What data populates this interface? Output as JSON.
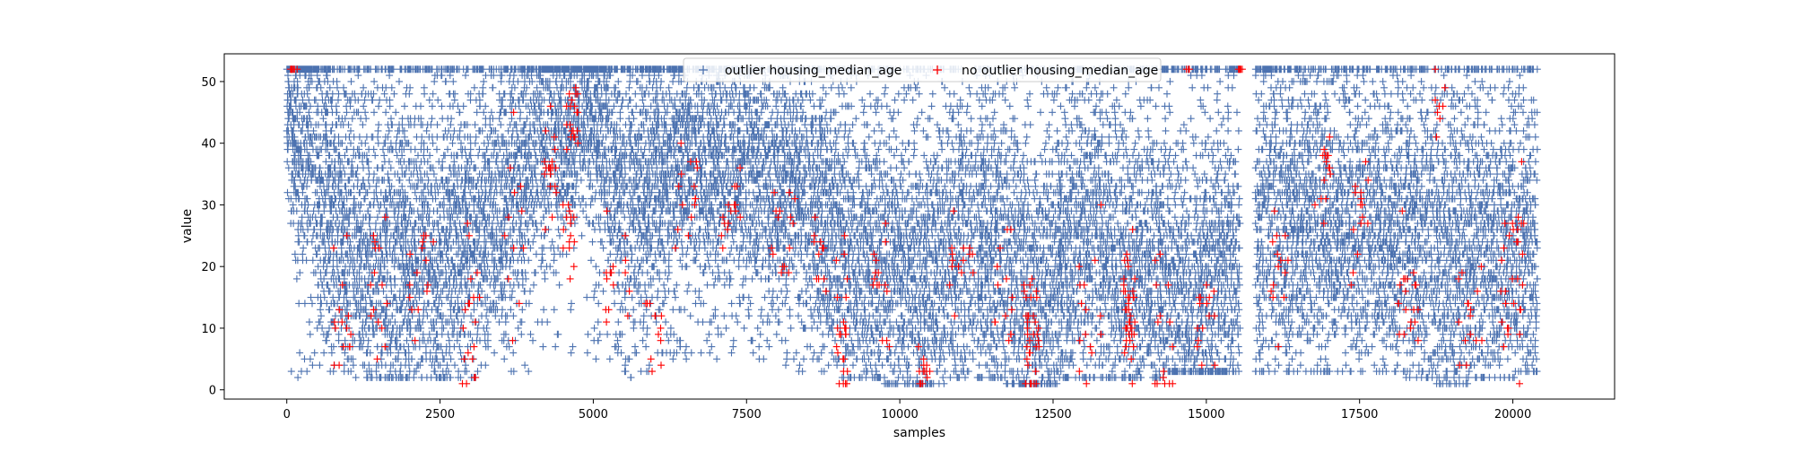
{
  "chart_data": {
    "type": "scatter",
    "title": "",
    "xlabel": "samples",
    "ylabel": "value",
    "xlim": [
      -1020,
      21660
    ],
    "ylim": [
      -1.5,
      54.5
    ],
    "x_ticks": [
      0,
      2500,
      5000,
      7500,
      10000,
      12500,
      15000,
      17500,
      20000
    ],
    "y_ticks": [
      0,
      10,
      20,
      30,
      40,
      50
    ],
    "grid": false,
    "legend_position": "top-center",
    "marker": "+",
    "series": [
      {
        "name": "outlier housing_median_age",
        "color": "#4c72b0",
        "profile": [
          {
            "x": 0,
            "y_min": 2,
            "y_max": 52,
            "center": 45,
            "spread": 7
          },
          {
            "x": 600,
            "y_min": 3,
            "y_max": 52,
            "center": 30,
            "spread": 12
          },
          {
            "x": 1500,
            "y_min": 2,
            "y_max": 52,
            "center": 22,
            "spread": 11
          },
          {
            "x": 2500,
            "y_min": 2,
            "y_max": 52,
            "center": 22,
            "spread": 11
          },
          {
            "x": 3500,
            "y_min": 2,
            "y_max": 52,
            "center": 30,
            "spread": 10
          },
          {
            "x": 4300,
            "y_min": 3,
            "y_max": 52,
            "center": 40,
            "spread": 8
          },
          {
            "x": 5000,
            "y_min": 5,
            "y_max": 52,
            "center": 44,
            "spread": 7
          },
          {
            "x": 5600,
            "y_min": 2,
            "y_max": 52,
            "center": 30,
            "spread": 12
          },
          {
            "x": 6500,
            "y_min": 5,
            "y_max": 52,
            "center": 38,
            "spread": 8
          },
          {
            "x": 7500,
            "y_min": 5,
            "y_max": 52,
            "center": 36,
            "spread": 9
          },
          {
            "x": 8500,
            "y_min": 3,
            "y_max": 52,
            "center": 32,
            "spread": 10
          },
          {
            "x": 9200,
            "y_min": 2,
            "y_max": 52,
            "center": 22,
            "spread": 11
          },
          {
            "x": 10300,
            "y_min": 1,
            "y_max": 52,
            "center": 18,
            "spread": 11
          },
          {
            "x": 11200,
            "y_min": 2,
            "y_max": 52,
            "center": 25,
            "spread": 11
          },
          {
            "x": 12200,
            "y_min": 1,
            "y_max": 52,
            "center": 15,
            "spread": 11
          },
          {
            "x": 13000,
            "y_min": 2,
            "y_max": 52,
            "center": 26,
            "spread": 12
          },
          {
            "x": 13800,
            "y_min": 2,
            "y_max": 52,
            "center": 20,
            "spread": 11
          },
          {
            "x": 14800,
            "y_min": 3,
            "y_max": 52,
            "center": 17,
            "spread": 10
          },
          {
            "x": 15400,
            "y_min": 3,
            "y_max": 52,
            "center": 20,
            "spread": 11
          },
          {
            "x": 16000,
            "y_min": 3,
            "y_max": 52,
            "center": 28,
            "spread": 12
          },
          {
            "x": 17000,
            "y_min": 3,
            "y_max": 52,
            "center": 27,
            "spread": 11
          },
          {
            "x": 18000,
            "y_min": 3,
            "y_max": 52,
            "center": 25,
            "spread": 11
          },
          {
            "x": 19000,
            "y_min": 1,
            "y_max": 52,
            "center": 22,
            "spread": 12
          },
          {
            "x": 20400,
            "y_min": 3,
            "y_max": 52,
            "center": 22,
            "spread": 10
          }
        ],
        "gaps": [
          [
            15550,
            15800
          ]
        ],
        "clusters_at_max": [
          [
            0,
            500
          ],
          [
            4050,
            5000
          ],
          [
            15400,
            16100
          ]
        ],
        "n_points": 19000
      },
      {
        "name": "no outlier housing_median_age",
        "color": "#ff0000",
        "hotspots": [
          {
            "x": 100,
            "y": 52,
            "w": 150,
            "sd": 0.2,
            "n": 6
          },
          {
            "x": 900,
            "y": 12,
            "w": 300,
            "sd": 5,
            "n": 15
          },
          {
            "x": 1500,
            "y": 18,
            "w": 300,
            "sd": 6,
            "n": 15
          },
          {
            "x": 2200,
            "y": 18,
            "w": 400,
            "sd": 6,
            "n": 15
          },
          {
            "x": 3000,
            "y": 10,
            "w": 300,
            "sd": 7,
            "n": 20
          },
          {
            "x": 3700,
            "y": 25,
            "w": 400,
            "sd": 8,
            "n": 12
          },
          {
            "x": 4300,
            "y": 35,
            "w": 200,
            "sd": 4,
            "n": 20
          },
          {
            "x": 4650,
            "y": 45,
            "w": 200,
            "sd": 3,
            "n": 20
          },
          {
            "x": 4600,
            "y": 26,
            "w": 200,
            "sd": 4,
            "n": 15
          },
          {
            "x": 5400,
            "y": 20,
            "w": 400,
            "sd": 5,
            "n": 15
          },
          {
            "x": 6000,
            "y": 10,
            "w": 300,
            "sd": 6,
            "n": 12
          },
          {
            "x": 6500,
            "y": 32,
            "w": 400,
            "sd": 4,
            "n": 15
          },
          {
            "x": 7200,
            "y": 30,
            "w": 400,
            "sd": 4,
            "n": 15
          },
          {
            "x": 8100,
            "y": 27,
            "w": 400,
            "sd": 5,
            "n": 15
          },
          {
            "x": 8700,
            "y": 20,
            "w": 200,
            "sd": 6,
            "n": 12
          },
          {
            "x": 9050,
            "y": 8,
            "w": 200,
            "sd": 6,
            "n": 25
          },
          {
            "x": 9700,
            "y": 15,
            "w": 300,
            "sd": 6,
            "n": 15
          },
          {
            "x": 10400,
            "y": 3,
            "w": 200,
            "sd": 2,
            "n": 15
          },
          {
            "x": 11000,
            "y": 20,
            "w": 400,
            "sd": 6,
            "n": 15
          },
          {
            "x": 11700,
            "y": 15,
            "w": 300,
            "sd": 6,
            "n": 15
          },
          {
            "x": 12150,
            "y": 8,
            "w": 250,
            "sd": 6,
            "n": 35
          },
          {
            "x": 13100,
            "y": 12,
            "w": 400,
            "sd": 8,
            "n": 15
          },
          {
            "x": 13750,
            "y": 12,
            "w": 200,
            "sd": 7,
            "n": 40
          },
          {
            "x": 14300,
            "y": 10,
            "w": 300,
            "sd": 7,
            "n": 15
          },
          {
            "x": 14700,
            "y": 52,
            "w": 60,
            "sd": 0.2,
            "n": 3
          },
          {
            "x": 15000,
            "y": 8,
            "w": 300,
            "sd": 6,
            "n": 15
          },
          {
            "x": 15550,
            "y": 52,
            "w": 100,
            "sd": 0.2,
            "n": 8
          },
          {
            "x": 16200,
            "y": 20,
            "w": 300,
            "sd": 6,
            "n": 15
          },
          {
            "x": 16900,
            "y": 35,
            "w": 300,
            "sd": 4,
            "n": 15
          },
          {
            "x": 17500,
            "y": 28,
            "w": 300,
            "sd": 5,
            "n": 15
          },
          {
            "x": 18300,
            "y": 15,
            "w": 400,
            "sd": 6,
            "n": 20
          },
          {
            "x": 18800,
            "y": 45,
            "w": 200,
            "sd": 5,
            "n": 8
          },
          {
            "x": 19300,
            "y": 12,
            "w": 400,
            "sd": 6,
            "n": 15
          },
          {
            "x": 20000,
            "y": 18,
            "w": 400,
            "sd": 8,
            "n": 30
          }
        ]
      }
    ]
  }
}
